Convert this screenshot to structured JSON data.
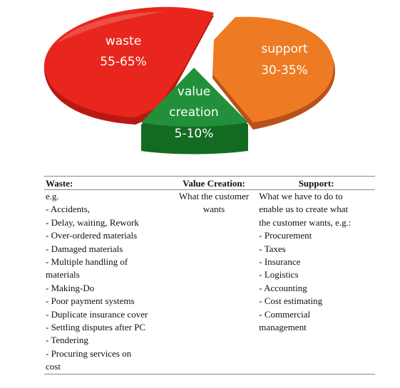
{
  "pie": {
    "slices": [
      {
        "label": "waste",
        "value": "55-65%",
        "color": "#e8261d"
      },
      {
        "label": "support",
        "value": "30-35%",
        "color": "#e8701f"
      },
      {
        "label_line1": "value",
        "label_line2": "creation",
        "value": "5-10%",
        "color": "#1e8a2e"
      }
    ]
  },
  "table": {
    "headers": [
      "Waste:",
      "Value Creation:",
      "Support:"
    ],
    "waste_items": [
      "e.g.",
      "- Accidents,",
      "- Delay, waiting, Rework",
      "- Over-ordered materials",
      "- Damaged materials",
      "- Multiple handling of",
      "materials",
      "- Making-Do",
      "- Poor payment systems",
      "- Duplicate insurance cover",
      "- Settling disputes after PC",
      "- Tendering",
      "- Procuring services on",
      "cost"
    ],
    "value_creation_items": [
      "What the customer",
      "wants"
    ],
    "support_items": [
      "What we have to do to",
      "enable us to create what",
      "the customer wants, e.g.:",
      "- Procurement",
      "- Taxes",
      "- Insurance",
      "- Logistics",
      "- Accounting",
      "- Cost estimating",
      "- Commercial",
      "management"
    ]
  }
}
